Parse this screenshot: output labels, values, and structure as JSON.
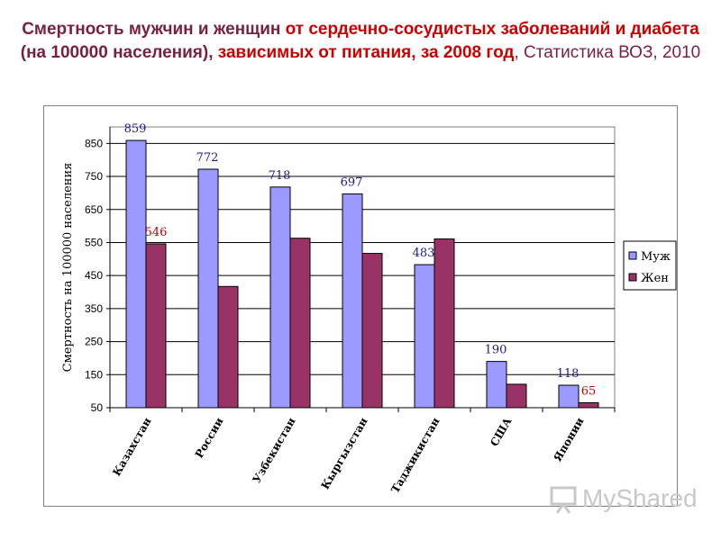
{
  "title": {
    "part1": "Смертность мужчин и женщин ",
    "part2": "от сердечно-сосудистых заболеваний и диабета",
    "part3": " (на 100000 населения), ",
    "part4": "зависимых от питания, за 2008 год",
    "part5": ", Статистика ВОЗ, 2010"
  },
  "watermark": "MyShared",
  "chart_data": {
    "type": "bar",
    "categories": [
      "Казахстан",
      "России",
      "Узбекистан",
      "Кыргызстан",
      "Таджикистан",
      "США",
      "Японии"
    ],
    "series": [
      {
        "name": "Муж",
        "values": [
          859,
          772,
          718,
          697,
          483,
          190,
          118
        ],
        "color": "#9999ff",
        "labelColor": "#1a1a8c"
      },
      {
        "name": "Жен",
        "values": [
          546,
          417,
          563,
          517,
          561,
          121,
          65
        ],
        "color": "#993366",
        "labelColor": "#c00000"
      }
    ],
    "data_labels": [
      {
        "series": 0,
        "index": 0,
        "text": "859"
      },
      {
        "series": 1,
        "index": 0,
        "text": "546"
      },
      {
        "series": 0,
        "index": 1,
        "text": "772"
      },
      {
        "series": 0,
        "index": 2,
        "text": "718"
      },
      {
        "series": 0,
        "index": 3,
        "text": "697"
      },
      {
        "series": 0,
        "index": 4,
        "text": "483"
      },
      {
        "series": 0,
        "index": 5,
        "text": "190"
      },
      {
        "series": 0,
        "index": 6,
        "text": "118"
      },
      {
        "series": 1,
        "index": 6,
        "text": "65"
      }
    ],
    "ylabel": "Смертность на 100000 населения",
    "xlabel": "",
    "ylim": [
      50,
      900
    ],
    "yticks": [
      50,
      150,
      250,
      350,
      450,
      550,
      650,
      750,
      850
    ],
    "grid": true,
    "legend": "right"
  }
}
